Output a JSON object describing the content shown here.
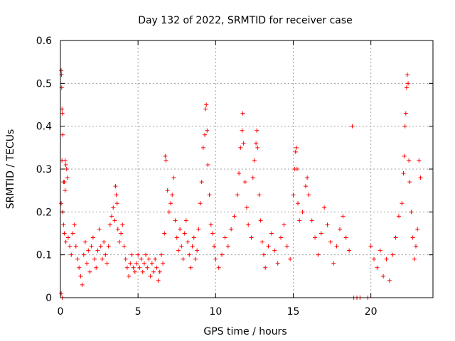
{
  "chart_data": {
    "type": "scatter",
    "title": "Day 132 of 2022, SRMTID for receiver case",
    "xlabel": "GPS time / hours",
    "ylabel": "SRMTID / TECUs",
    "xlim": [
      0,
      24
    ],
    "ylim": [
      0,
      0.6
    ],
    "x_ticks": [
      0,
      5,
      10,
      15,
      20
    ],
    "y_ticks": [
      0,
      0.1,
      0.2,
      0.3,
      0.4,
      0.5,
      0.6
    ],
    "x_tick_labels": [
      "0",
      "5",
      "10",
      "15",
      "20"
    ],
    "y_tick_labels": [
      "0",
      "0.1",
      "0.2",
      "0.3",
      "0.4",
      "0.5",
      "0.6"
    ],
    "grid": true,
    "marker": "+",
    "color": "#ff0000",
    "series": [
      {
        "name": "SRMTID",
        "points": [
          [
            0.05,
            0.53
          ],
          [
            0.07,
            0.52
          ],
          [
            0.08,
            0.49
          ],
          [
            0.1,
            0.44
          ],
          [
            0.12,
            0.43
          ],
          [
            0.15,
            0.38
          ],
          [
            0.1,
            0.32
          ],
          [
            0.2,
            0.27
          ],
          [
            0.25,
            0.27
          ],
          [
            0.3,
            0.32
          ],
          [
            0.35,
            0.31
          ],
          [
            0.4,
            0.3
          ],
          [
            0.45,
            0.28
          ],
          [
            0.3,
            0.25
          ],
          [
            0.05,
            0.22
          ],
          [
            0.15,
            0.2
          ],
          [
            0.2,
            0.17
          ],
          [
            0.25,
            0.15
          ],
          [
            0.35,
            0.13
          ],
          [
            0.05,
            0.01
          ],
          [
            0.12,
            0.0
          ],
          [
            0.5,
            0.14
          ],
          [
            0.6,
            0.12
          ],
          [
            0.7,
            0.1
          ],
          [
            0.8,
            0.15
          ],
          [
            0.9,
            0.17
          ],
          [
            1.0,
            0.12
          ],
          [
            1.1,
            0.09
          ],
          [
            1.2,
            0.07
          ],
          [
            1.3,
            0.05
          ],
          [
            1.4,
            0.03
          ],
          [
            1.5,
            0.1
          ],
          [
            1.6,
            0.13
          ],
          [
            1.7,
            0.08
          ],
          [
            1.8,
            0.11
          ],
          [
            1.9,
            0.06
          ],
          [
            2.0,
            0.12
          ],
          [
            2.1,
            0.14
          ],
          [
            2.2,
            0.09
          ],
          [
            2.3,
            0.07
          ],
          [
            2.4,
            0.11
          ],
          [
            2.5,
            0.16
          ],
          [
            2.6,
            0.12
          ],
          [
            2.7,
            0.09
          ],
          [
            2.8,
            0.13
          ],
          [
            2.9,
            0.1
          ],
          [
            3.0,
            0.08
          ],
          [
            3.1,
            0.12
          ],
          [
            3.2,
            0.17
          ],
          [
            3.3,
            0.19
          ],
          [
            3.4,
            0.21
          ],
          [
            3.5,
            0.18
          ],
          [
            3.55,
            0.26
          ],
          [
            3.6,
            0.24
          ],
          [
            3.65,
            0.22
          ],
          [
            3.7,
            0.16
          ],
          [
            3.8,
            0.13
          ],
          [
            3.9,
            0.15
          ],
          [
            4.0,
            0.17
          ],
          [
            4.1,
            0.12
          ],
          [
            4.2,
            0.09
          ],
          [
            4.3,
            0.07
          ],
          [
            4.4,
            0.05
          ],
          [
            4.5,
            0.08
          ],
          [
            4.6,
            0.1
          ],
          [
            4.7,
            0.07
          ],
          [
            4.8,
            0.06
          ],
          [
            4.9,
            0.08
          ],
          [
            5.0,
            0.1
          ],
          [
            5.1,
            0.07
          ],
          [
            5.2,
            0.09
          ],
          [
            5.3,
            0.06
          ],
          [
            5.4,
            0.08
          ],
          [
            5.5,
            0.1
          ],
          [
            5.6,
            0.07
          ],
          [
            5.7,
            0.09
          ],
          [
            5.8,
            0.05
          ],
          [
            5.9,
            0.08
          ],
          [
            6.0,
            0.06
          ],
          [
            6.1,
            0.09
          ],
          [
            6.2,
            0.07
          ],
          [
            6.3,
            0.04
          ],
          [
            6.4,
            0.06
          ],
          [
            6.5,
            0.1
          ],
          [
            6.6,
            0.08
          ],
          [
            6.7,
            0.15
          ],
          [
            6.75,
            0.33
          ],
          [
            6.8,
            0.32
          ],
          [
            6.9,
            0.25
          ],
          [
            7.0,
            0.2
          ],
          [
            7.1,
            0.22
          ],
          [
            7.2,
            0.24
          ],
          [
            7.3,
            0.28
          ],
          [
            7.4,
            0.18
          ],
          [
            7.5,
            0.14
          ],
          [
            7.6,
            0.11
          ],
          [
            7.7,
            0.16
          ],
          [
            7.8,
            0.12
          ],
          [
            7.9,
            0.09
          ],
          [
            8.0,
            0.15
          ],
          [
            8.1,
            0.18
          ],
          [
            8.2,
            0.13
          ],
          [
            8.3,
            0.1
          ],
          [
            8.4,
            0.07
          ],
          [
            8.5,
            0.12
          ],
          [
            8.6,
            0.14
          ],
          [
            8.7,
            0.09
          ],
          [
            8.8,
            0.11
          ],
          [
            8.9,
            0.16
          ],
          [
            9.0,
            0.22
          ],
          [
            9.1,
            0.27
          ],
          [
            9.2,
            0.35
          ],
          [
            9.3,
            0.38
          ],
          [
            9.35,
            0.44
          ],
          [
            9.4,
            0.45
          ],
          [
            9.45,
            0.39
          ],
          [
            9.5,
            0.31
          ],
          [
            9.6,
            0.24
          ],
          [
            9.7,
            0.17
          ],
          [
            9.8,
            0.15
          ],
          [
            9.9,
            0.12
          ],
          [
            10.0,
            0.09
          ],
          [
            10.2,
            0.07
          ],
          [
            10.4,
            0.1
          ],
          [
            10.6,
            0.14
          ],
          [
            10.8,
            0.12
          ],
          [
            11.0,
            0.16
          ],
          [
            11.2,
            0.19
          ],
          [
            11.4,
            0.24
          ],
          [
            11.5,
            0.29
          ],
          [
            11.6,
            0.35
          ],
          [
            11.7,
            0.39
          ],
          [
            11.75,
            0.43
          ],
          [
            11.8,
            0.36
          ],
          [
            11.9,
            0.27
          ],
          [
            12.0,
            0.21
          ],
          [
            12.1,
            0.17
          ],
          [
            12.3,
            0.14
          ],
          [
            12.4,
            0.28
          ],
          [
            12.5,
            0.32
          ],
          [
            12.6,
            0.36
          ],
          [
            12.65,
            0.39
          ],
          [
            12.7,
            0.35
          ],
          [
            12.8,
            0.24
          ],
          [
            12.9,
            0.18
          ],
          [
            13.0,
            0.13
          ],
          [
            13.1,
            0.1
          ],
          [
            13.2,
            0.07
          ],
          [
            13.4,
            0.12
          ],
          [
            13.6,
            0.15
          ],
          [
            13.8,
            0.11
          ],
          [
            14.0,
            0.08
          ],
          [
            14.2,
            0.14
          ],
          [
            14.4,
            0.17
          ],
          [
            14.6,
            0.12
          ],
          [
            14.8,
            0.09
          ],
          [
            15.0,
            0.24
          ],
          [
            15.1,
            0.3
          ],
          [
            15.15,
            0.34
          ],
          [
            15.2,
            0.35
          ],
          [
            15.25,
            0.3
          ],
          [
            15.3,
            0.22
          ],
          [
            15.4,
            0.18
          ],
          [
            15.6,
            0.2
          ],
          [
            15.8,
            0.26
          ],
          [
            15.9,
            0.28
          ],
          [
            16.0,
            0.24
          ],
          [
            16.2,
            0.18
          ],
          [
            16.4,
            0.14
          ],
          [
            16.6,
            0.1
          ],
          [
            16.8,
            0.15
          ],
          [
            17.0,
            0.21
          ],
          [
            17.2,
            0.17
          ],
          [
            17.4,
            0.13
          ],
          [
            17.6,
            0.08
          ],
          [
            17.8,
            0.12
          ],
          [
            18.0,
            0.16
          ],
          [
            18.2,
            0.19
          ],
          [
            18.4,
            0.14
          ],
          [
            18.6,
            0.11
          ],
          [
            18.8,
            0.4
          ],
          [
            18.9,
            0.0
          ],
          [
            19.1,
            0.0
          ],
          [
            19.3,
            0.0
          ],
          [
            19.8,
            0.0
          ],
          [
            20.0,
            0.12
          ],
          [
            20.2,
            0.09
          ],
          [
            20.4,
            0.07
          ],
          [
            20.6,
            0.11
          ],
          [
            20.8,
            0.05
          ],
          [
            21.0,
            0.09
          ],
          [
            21.2,
            0.04
          ],
          [
            21.4,
            0.1
          ],
          [
            21.6,
            0.14
          ],
          [
            21.8,
            0.19
          ],
          [
            22.0,
            0.22
          ],
          [
            22.1,
            0.29
          ],
          [
            22.15,
            0.33
          ],
          [
            22.2,
            0.4
          ],
          [
            22.25,
            0.43
          ],
          [
            22.3,
            0.49
          ],
          [
            22.35,
            0.52
          ],
          [
            22.4,
            0.5
          ],
          [
            22.45,
            0.32
          ],
          [
            22.5,
            0.27
          ],
          [
            22.6,
            0.2
          ],
          [
            22.7,
            0.14
          ],
          [
            22.8,
            0.09
          ],
          [
            22.9,
            0.12
          ],
          [
            23.0,
            0.16
          ],
          [
            23.1,
            0.32
          ],
          [
            23.2,
            0.28
          ]
        ]
      }
    ]
  }
}
